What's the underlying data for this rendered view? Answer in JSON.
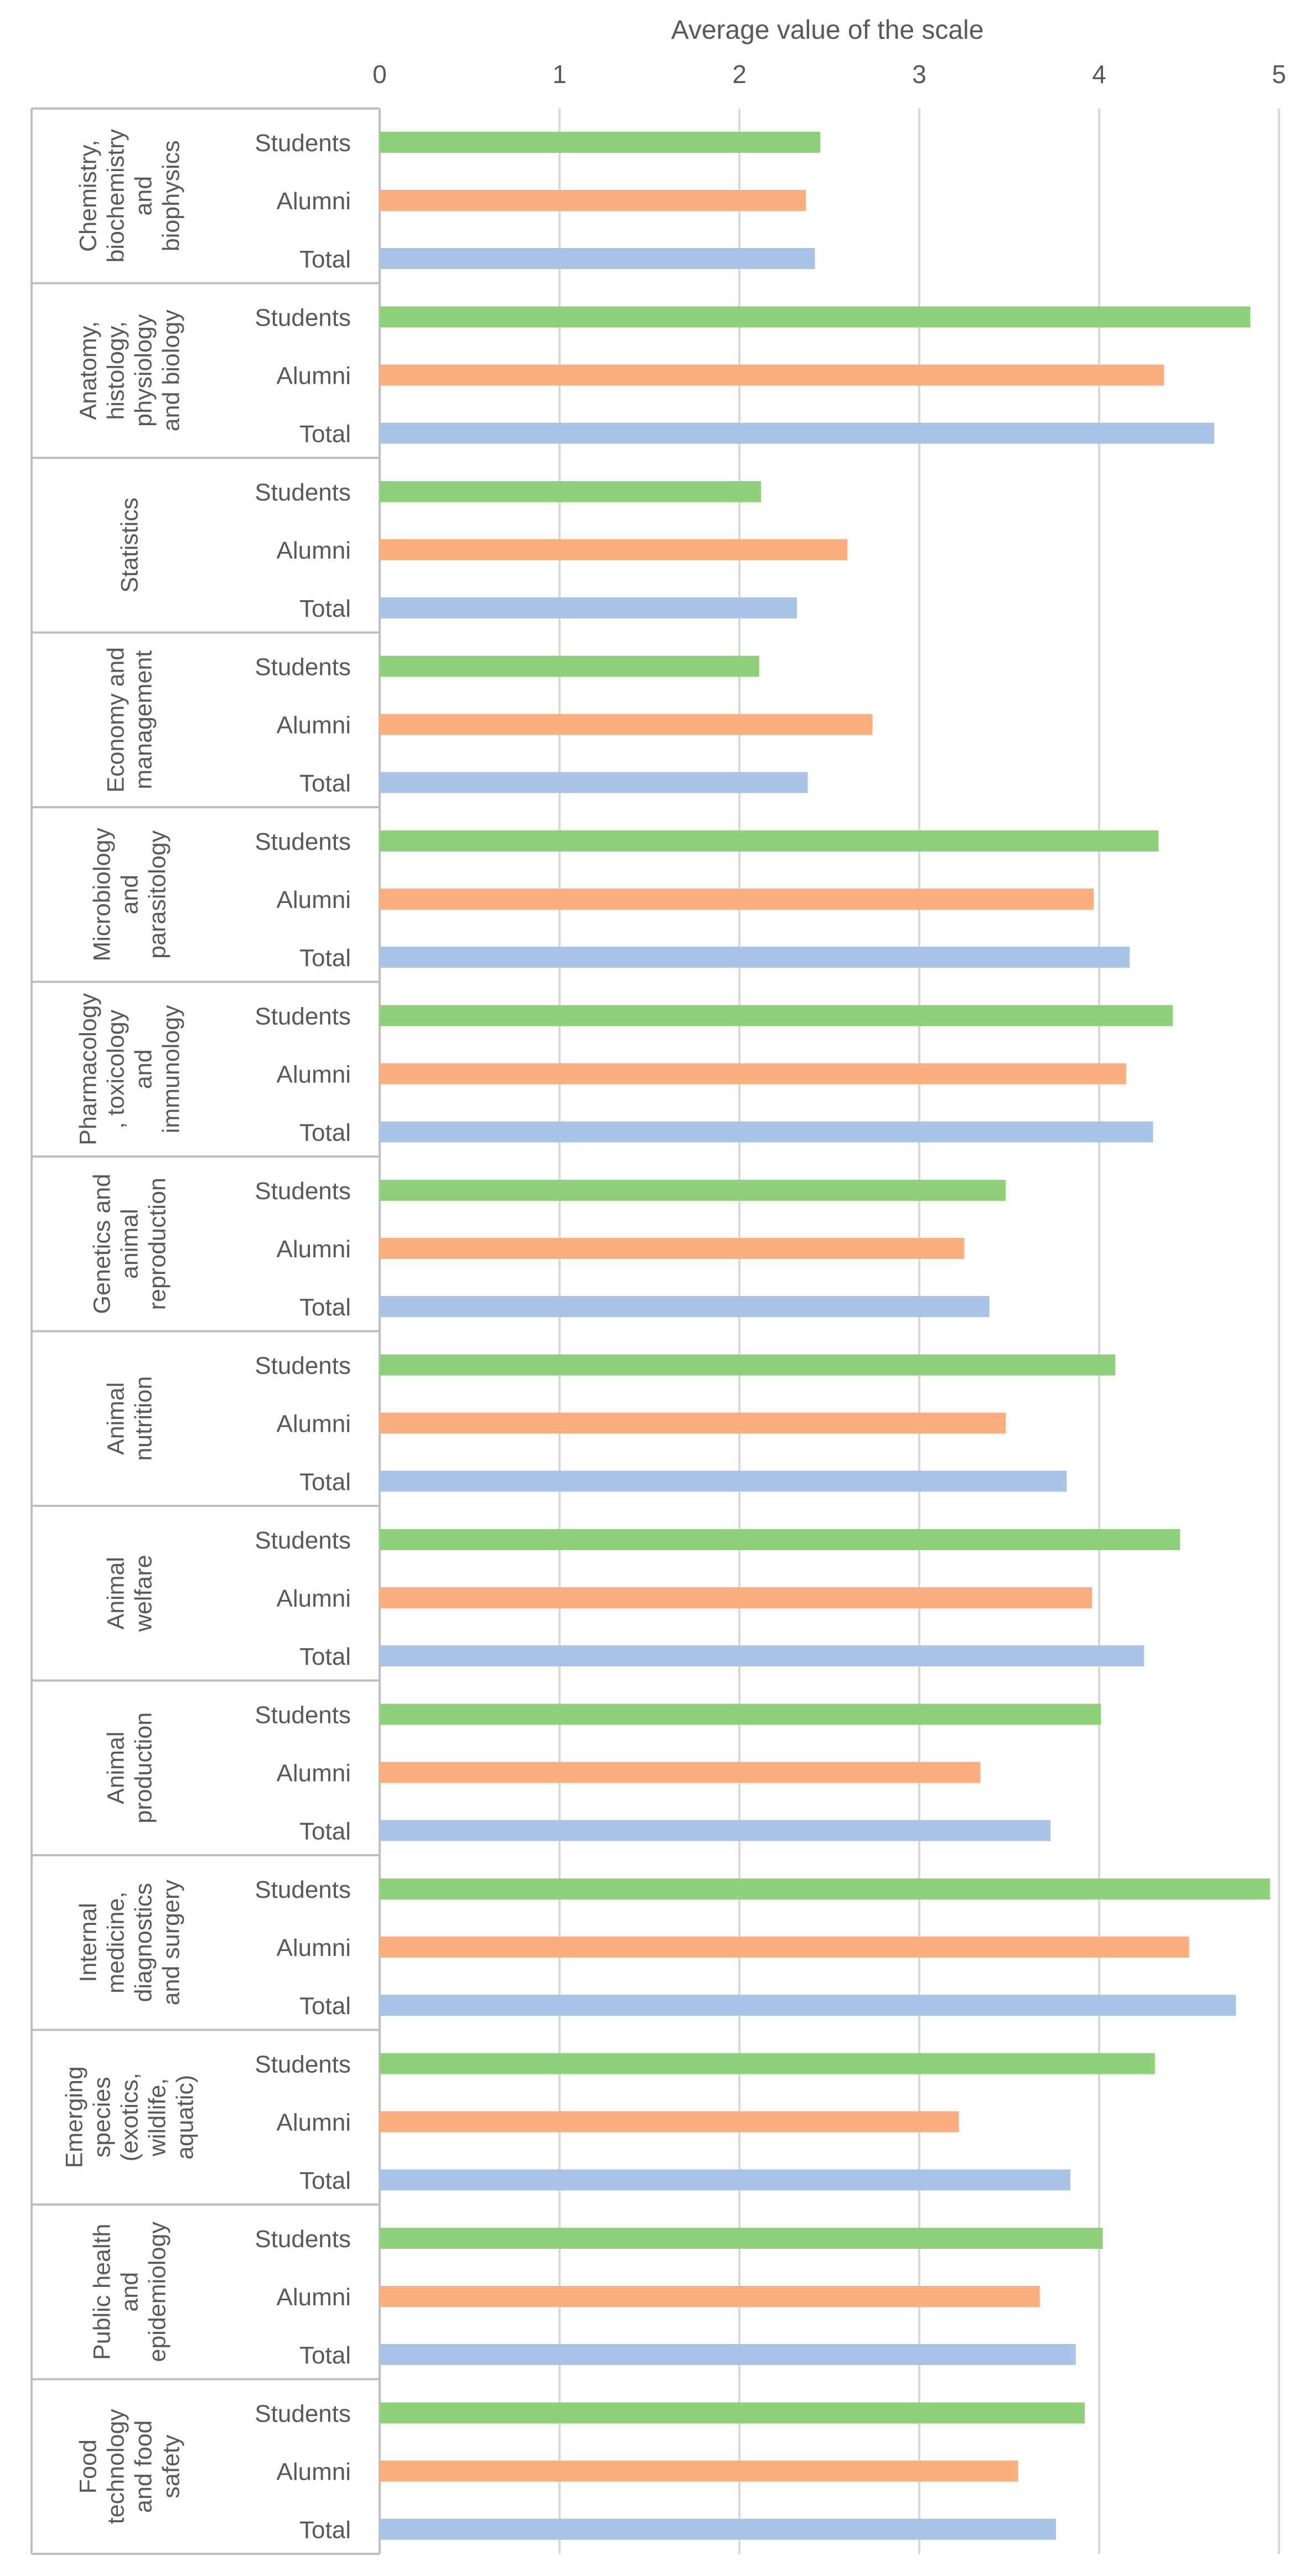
{
  "chart_data": {
    "type": "bar",
    "orientation": "horizontal",
    "title": "",
    "xlabel": "Average value of the scale",
    "ylabel": "",
    "xlim": [
      0,
      5
    ],
    "xticks": [
      0,
      1,
      2,
      3,
      4,
      5
    ],
    "grid": true,
    "legend": "none",
    "series": [
      {
        "name": "Students",
        "color": "#8fd17a"
      },
      {
        "name": "Alumni",
        "color": "#fbae7f"
      },
      {
        "name": "Total",
        "color": "#a9c4e7"
      }
    ],
    "groups": [
      {
        "label": [
          "Chemistry,",
          "biochemistry",
          "and",
          "biophysics"
        ],
        "values": {
          "Students": 2.45,
          "Alumni": 2.37,
          "Total": 2.42
        }
      },
      {
        "label": [
          "Anatomy,",
          "histology,",
          "physiology",
          "and biology"
        ],
        "values": {
          "Students": 4.84,
          "Alumni": 4.36,
          "Total": 4.64
        }
      },
      {
        "label": [
          "Statistics"
        ],
        "values": {
          "Students": 2.12,
          "Alumni": 2.6,
          "Total": 2.32
        }
      },
      {
        "label": [
          "Economy and",
          "management"
        ],
        "values": {
          "Students": 2.11,
          "Alumni": 2.74,
          "Total": 2.38
        }
      },
      {
        "label": [
          "Microbiology",
          "and",
          "parasitology"
        ],
        "values": {
          "Students": 4.33,
          "Alumni": 3.97,
          "Total": 4.17
        }
      },
      {
        "label": [
          "Pharmacology",
          ", toxicology",
          "and",
          "immunology"
        ],
        "values": {
          "Students": 4.41,
          "Alumni": 4.15,
          "Total": 4.3
        }
      },
      {
        "label": [
          "Genetics and",
          "animal",
          "reproduction"
        ],
        "values": {
          "Students": 3.48,
          "Alumni": 3.25,
          "Total": 3.39
        }
      },
      {
        "label": [
          "Animal",
          "nutrition"
        ],
        "values": {
          "Students": 4.09,
          "Alumni": 3.48,
          "Total": 3.82
        }
      },
      {
        "label": [
          "Animal",
          "welfare"
        ],
        "values": {
          "Students": 4.45,
          "Alumni": 3.96,
          "Total": 4.25
        }
      },
      {
        "label": [
          "Animal",
          "production"
        ],
        "values": {
          "Students": 4.01,
          "Alumni": 3.34,
          "Total": 3.73
        }
      },
      {
        "label": [
          "Internal",
          "medicine,",
          "diagnostics",
          "and surgery"
        ],
        "values": {
          "Students": 4.95,
          "Alumni": 4.5,
          "Total": 4.76
        }
      },
      {
        "label": [
          "Emerging",
          "species",
          "(exotics,",
          "wildlife,",
          "aquatic)"
        ],
        "values": {
          "Students": 4.31,
          "Alumni": 3.22,
          "Total": 3.84
        }
      },
      {
        "label": [
          "Public health",
          "and",
          "epidemiology"
        ],
        "values": {
          "Students": 4.02,
          "Alumni": 3.67,
          "Total": 3.87
        }
      },
      {
        "label": [
          "Food",
          "technology",
          "and food",
          "safety"
        ],
        "values": {
          "Students": 3.92,
          "Alumni": 3.55,
          "Total": 3.76
        }
      }
    ]
  }
}
